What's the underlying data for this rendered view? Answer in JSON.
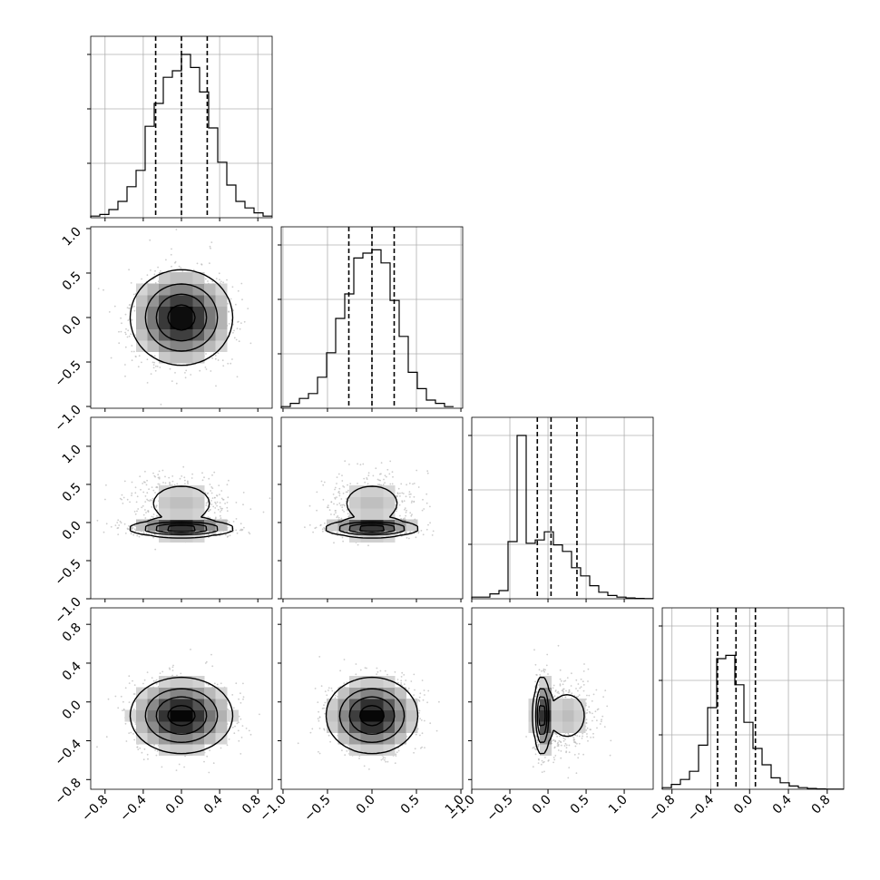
{
  "chart_data": {
    "type": "corner",
    "parameters": 4,
    "title": "",
    "axis_labels": [
      "",
      "",
      "",
      ""
    ],
    "grid": true,
    "quantile_lines": [
      [
        -0.27,
        0.0,
        0.27
      ],
      [
        -0.26,
        0.0,
        0.25
      ],
      [
        -0.14,
        0.04,
        0.38
      ],
      [
        -0.33,
        -0.14,
        0.06
      ]
    ],
    "ranges": [
      [
        -0.95,
        0.95
      ],
      [
        -1.02,
        1.02
      ],
      [
        -1.0,
        1.38
      ],
      [
        -0.9,
        0.97
      ]
    ],
    "histograms": [
      {
        "edges_start": -0.95,
        "bin_width": 0.095,
        "counts": [
          0.01,
          0.02,
          0.05,
          0.1,
          0.19,
          0.29,
          0.56,
          0.7,
          0.86,
          0.9,
          1.0,
          0.92,
          0.77,
          0.55,
          0.34,
          0.2,
          0.1,
          0.06,
          0.03,
          0.01
        ]
      },
      {
        "edges_start": -1.02,
        "bin_width": 0.102,
        "counts": [
          0.01,
          0.03,
          0.06,
          0.09,
          0.19,
          0.34,
          0.55,
          0.7,
          0.92,
          0.95,
          0.97,
          0.89,
          0.66,
          0.44,
          0.22,
          0.12,
          0.05,
          0.03,
          0.01
        ]
      },
      {
        "edges_start": -1.0,
        "bin_width": 0.119,
        "counts": [
          0.01,
          0.01,
          0.03,
          0.05,
          0.35,
          1.0,
          0.34,
          0.36,
          0.41,
          0.33,
          0.29,
          0.19,
          0.14,
          0.08,
          0.04,
          0.02,
          0.01,
          0.005,
          0.002,
          0.001
        ]
      },
      {
        "edges_start": -0.9,
        "bin_width": 0.0935,
        "counts": [
          0.01,
          0.03,
          0.06,
          0.11,
          0.27,
          0.5,
          0.8,
          0.82,
          0.64,
          0.41,
          0.25,
          0.15,
          0.07,
          0.04,
          0.02,
          0.01,
          0.005,
          0.002,
          0.001,
          0.001
        ]
      }
    ],
    "tick_labels": {
      "p0": [
        "−0.8",
        "−0.4",
        "0.0",
        "0.4",
        "0.8"
      ],
      "p1": [
        "−1.0",
        "−0.5",
        "0.0",
        "0.5",
        "1.0"
      ],
      "p2": [
        "−1.0",
        "−0.5",
        "0.0",
        "0.5",
        "1.0"
      ],
      "p3": [
        "−0.8",
        "−0.4",
        "0.0",
        "0.4",
        "0.8"
      ]
    },
    "tick_values": {
      "p0": [
        -0.8,
        -0.4,
        0.0,
        0.4,
        0.8
      ],
      "p1": [
        -1.0,
        -0.5,
        0.0,
        0.5,
        1.0
      ],
      "p2": [
        -1.0,
        -0.5,
        0.0,
        0.5,
        1.0
      ],
      "p3": [
        -0.8,
        -0.4,
        0.0,
        0.4,
        0.8
      ]
    },
    "pair_distributions": [
      {
        "x": 0,
        "y": 1,
        "modes": [
          {
            "mx": 0.0,
            "my": 0.0,
            "sx": 0.26,
            "sy": 0.26,
            "w": 1.0
          }
        ]
      },
      {
        "x": 0,
        "y": 2,
        "modes": [
          {
            "mx": 0.0,
            "my": -0.08,
            "sx": 0.26,
            "sy": 0.05,
            "w": 0.55
          },
          {
            "mx": 0.0,
            "my": 0.25,
            "sx": 0.26,
            "sy": 0.2,
            "w": 0.45
          }
        ]
      },
      {
        "x": 1,
        "y": 2,
        "modes": [
          {
            "mx": 0.0,
            "my": -0.08,
            "sx": 0.25,
            "sy": 0.05,
            "w": 0.55
          },
          {
            "mx": 0.0,
            "my": 0.25,
            "sx": 0.25,
            "sy": 0.2,
            "w": 0.45
          }
        ]
      },
      {
        "x": 0,
        "y": 3,
        "modes": [
          {
            "mx": 0.0,
            "my": -0.14,
            "sx": 0.26,
            "sy": 0.19,
            "w": 1.0
          }
        ]
      },
      {
        "x": 1,
        "y": 3,
        "modes": [
          {
            "mx": 0.0,
            "my": -0.14,
            "sx": 0.25,
            "sy": 0.19,
            "w": 1.0
          }
        ]
      },
      {
        "x": 2,
        "y": 3,
        "modes": [
          {
            "mx": -0.08,
            "my": -0.14,
            "sx": 0.05,
            "sy": 0.19,
            "w": 0.55
          },
          {
            "mx": 0.25,
            "my": -0.14,
            "sx": 0.2,
            "sy": 0.19,
            "w": 0.45
          }
        ]
      }
    ]
  }
}
